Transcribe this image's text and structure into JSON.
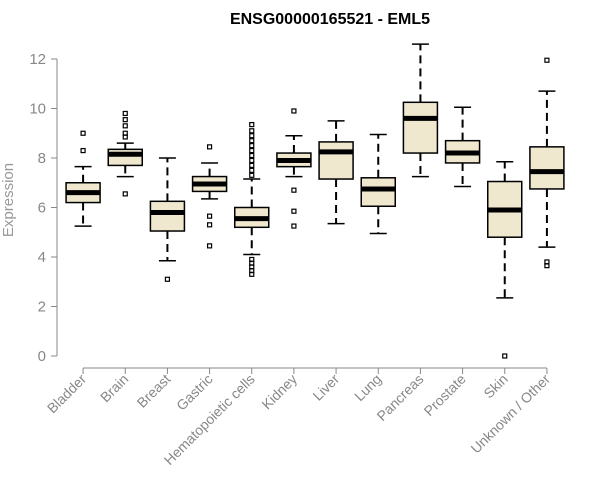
{
  "chart_data": {
    "type": "boxplot",
    "title": "ENSG00000165521 - EML5",
    "ylabel": "Expression",
    "xlabel": "",
    "ylim": [
      0,
      12.5
    ],
    "yticks": [
      0,
      2,
      4,
      6,
      8,
      10,
      12
    ],
    "grid": false,
    "box_fill": "#efe8cf",
    "categories": [
      "Bladder",
      "Brain",
      "Breast",
      "Gastric",
      "Hematopoietic cells",
      "Kidney",
      "Liver",
      "Lung",
      "Pancreas",
      "Prostate",
      "Skin",
      "Unknown / Other"
    ],
    "boxes": [
      {
        "category": "Bladder",
        "whisker_low": 5.25,
        "q1": 6.2,
        "median": 6.6,
        "q3": 7.0,
        "whisker_high": 7.65,
        "outliers": [
          8.3,
          9.0
        ]
      },
      {
        "category": "Brain",
        "whisker_low": 7.25,
        "q1": 7.7,
        "median": 8.15,
        "q3": 8.35,
        "whisker_high": 8.6,
        "outliers": [
          6.55,
          8.85,
          9.0,
          9.3,
          9.55,
          9.8
        ]
      },
      {
        "category": "Breast",
        "whisker_low": 3.85,
        "q1": 5.05,
        "median": 5.8,
        "q3": 6.25,
        "whisker_high": 8.0,
        "outliers": [
          3.1
        ]
      },
      {
        "category": "Gastric",
        "whisker_low": 6.35,
        "q1": 6.65,
        "median": 6.95,
        "q3": 7.25,
        "whisker_high": 7.8,
        "outliers": [
          8.45,
          5.65,
          5.3,
          4.45
        ]
      },
      {
        "category": "Hematopoietic cells",
        "whisker_low": 4.1,
        "q1": 5.2,
        "median": 5.55,
        "q3": 6.0,
        "whisker_high": 7.15,
        "outliers": [
          3.3,
          3.45,
          3.6,
          3.75,
          3.9,
          7.3,
          7.5,
          7.7,
          7.9,
          8.1,
          8.3,
          8.5,
          8.7,
          8.9,
          9.1,
          9.35
        ]
      },
      {
        "category": "Kidney",
        "whisker_low": 7.25,
        "q1": 7.65,
        "median": 7.9,
        "q3": 8.2,
        "whisker_high": 8.9,
        "outliers": [
          9.9,
          6.7,
          5.85,
          5.25
        ]
      },
      {
        "category": "Liver",
        "whisker_low": 5.35,
        "q1": 7.15,
        "median": 8.25,
        "q3": 8.65,
        "whisker_high": 9.5,
        "outliers": []
      },
      {
        "category": "Lung",
        "whisker_low": 4.95,
        "q1": 6.05,
        "median": 6.75,
        "q3": 7.2,
        "whisker_high": 8.95,
        "outliers": []
      },
      {
        "category": "Pancreas",
        "whisker_low": 7.25,
        "q1": 8.2,
        "median": 9.6,
        "q3": 10.25,
        "whisker_high": 12.6,
        "outliers": []
      },
      {
        "category": "Prostate",
        "whisker_low": 6.85,
        "q1": 7.8,
        "median": 8.2,
        "q3": 8.7,
        "whisker_high": 10.05,
        "outliers": []
      },
      {
        "category": "Skin",
        "whisker_low": 2.35,
        "q1": 4.8,
        "median": 5.9,
        "q3": 7.05,
        "whisker_high": 7.85,
        "outliers": [
          0.0
        ]
      },
      {
        "category": "Unknown / Other",
        "whisker_low": 4.4,
        "q1": 6.75,
        "median": 7.45,
        "q3": 8.45,
        "whisker_high": 10.7,
        "outliers": [
          11.95,
          3.8,
          3.65
        ]
      }
    ]
  }
}
